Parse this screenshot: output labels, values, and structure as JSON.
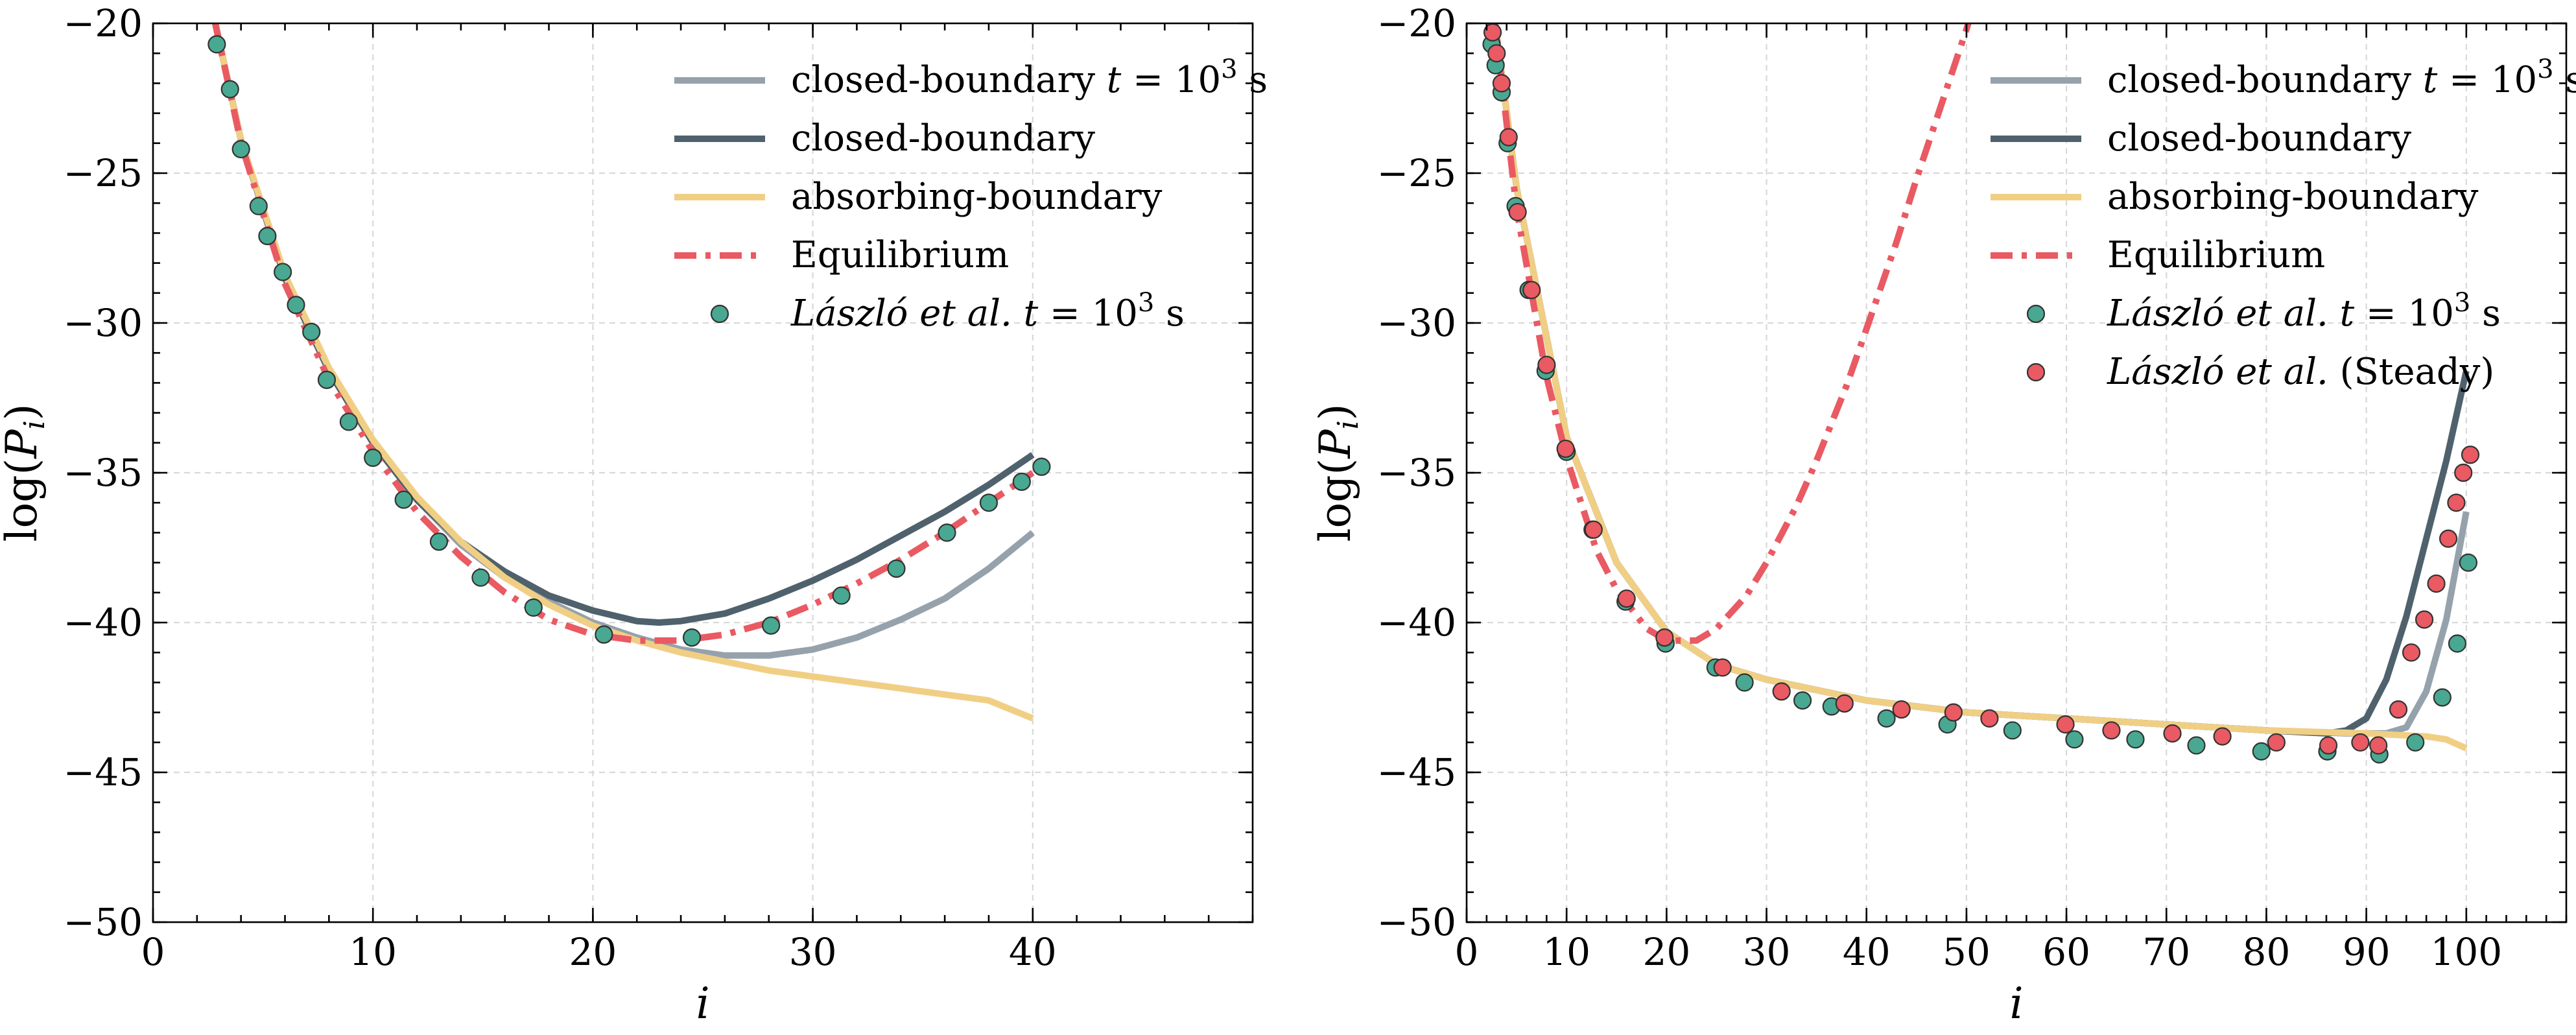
{
  "chart_data": [
    {
      "type": "line",
      "xlabel": "i",
      "ylabel": "log(P_i)",
      "xlim": [
        0,
        50
      ],
      "ylim": [
        -50,
        -20
      ],
      "xticks": [
        0,
        10,
        20,
        30,
        40
      ],
      "xtick_labels": [
        "0",
        "10",
        "20",
        "30",
        "40"
      ],
      "yticks": [
        -50,
        -45,
        -40,
        -35,
        -30,
        -25,
        -20
      ],
      "ytick_labels": [
        "−50",
        "−45",
        "−40",
        "−35",
        "−30",
        "−25",
        "−20"
      ],
      "grid": true,
      "legend_position": "top-right",
      "series": [
        {
          "name": "closed-boundary t = 10^3 s",
          "legend_parts": [
            "closed-boundary ",
            "t",
            " = 10",
            "3",
            " s"
          ],
          "kind": "line",
          "color": "#95a2ac",
          "dash": "solid",
          "x": [
            2.8,
            4,
            6,
            8,
            10,
            12,
            14,
            16,
            18,
            20,
            22,
            24,
            26,
            28,
            30,
            32,
            34,
            36,
            38,
            40
          ],
          "y": [
            -19.9,
            -23.9,
            -28.5,
            -31.6,
            -34.0,
            -35.9,
            -37.4,
            -38.5,
            -39.3,
            -40.0,
            -40.5,
            -40.9,
            -41.1,
            -41.1,
            -40.9,
            -40.5,
            -39.9,
            -39.2,
            -38.2,
            -37.0
          ]
        },
        {
          "name": "closed-boundary",
          "kind": "line",
          "color": "#4f616c",
          "dash": "solid",
          "x": [
            2.8,
            4,
            6,
            8,
            10,
            12,
            14,
            16,
            18,
            20,
            22,
            23,
            24,
            26,
            28,
            30,
            32,
            34,
            36,
            38,
            40
          ],
          "y": [
            -19.9,
            -23.9,
            -28.5,
            -31.6,
            -34.0,
            -35.9,
            -37.3,
            -38.3,
            -39.1,
            -39.6,
            -39.95,
            -40.0,
            -39.95,
            -39.7,
            -39.2,
            -38.6,
            -37.9,
            -37.1,
            -36.3,
            -35.4,
            -34.4
          ]
        },
        {
          "name": "absorbing-boundary",
          "kind": "line",
          "color": "#f0cf85",
          "dash": "solid",
          "x": [
            2.8,
            4,
            6,
            8,
            10,
            12,
            14,
            16,
            18,
            20,
            22,
            24,
            26,
            28,
            30,
            32,
            34,
            36,
            38,
            39,
            40
          ],
          "y": [
            -19.9,
            -23.9,
            -28.4,
            -31.5,
            -33.9,
            -35.8,
            -37.3,
            -38.5,
            -39.4,
            -40.1,
            -40.6,
            -41.0,
            -41.3,
            -41.6,
            -41.8,
            -42.0,
            -42.2,
            -42.4,
            -42.6,
            -42.9,
            -43.2
          ]
        },
        {
          "name": "Equilibrium",
          "kind": "line",
          "color": "#e95a63",
          "dash": "dashdot",
          "x": [
            2.8,
            4,
            6,
            8,
            10,
            12,
            14,
            16,
            18,
            20,
            22,
            24,
            26,
            28,
            30,
            32,
            34,
            36,
            38,
            40
          ],
          "y": [
            -19.9,
            -24.0,
            -28.7,
            -31.9,
            -34.3,
            -36.3,
            -37.8,
            -39.0,
            -39.9,
            -40.4,
            -40.6,
            -40.6,
            -40.4,
            -40.0,
            -39.4,
            -38.7,
            -37.9,
            -37.0,
            -36.0,
            -35.0
          ]
        },
        {
          "name": "László et al. t = 10^3 s",
          "legend_parts": [
            "László et al.",
            " ",
            "t",
            " = 10",
            "3",
            " s"
          ],
          "kind": "scatter",
          "color": "#49a891",
          "x": [
            2.9,
            3.5,
            4.0,
            4.8,
            5.2,
            5.9,
            6.5,
            7.2,
            7.9,
            8.9,
            10.0,
            11.4,
            13.0,
            14.9,
            17.3,
            20.5,
            24.5,
            28.1,
            31.3,
            33.8,
            36.1,
            38.0,
            39.5,
            40.4
          ],
          "y": [
            -20.7,
            -22.2,
            -24.2,
            -26.1,
            -27.1,
            -28.3,
            -29.4,
            -30.3,
            -31.9,
            -33.3,
            -34.5,
            -35.9,
            -37.3,
            -38.5,
            -39.5,
            -40.4,
            -40.5,
            -40.1,
            -39.1,
            -38.2,
            -37.0,
            -36.0,
            -35.3,
            -34.8
          ]
        }
      ]
    },
    {
      "type": "line",
      "xlabel": "i",
      "ylabel": "log(P_i)",
      "xlim": [
        0,
        110
      ],
      "ylim": [
        -50,
        -20
      ],
      "xticks": [
        0,
        10,
        20,
        30,
        40,
        50,
        60,
        70,
        80,
        90,
        100
      ],
      "xtick_labels": [
        "0",
        "10",
        "20",
        "30",
        "40",
        "50",
        "60",
        "70",
        "80",
        "90",
        "100"
      ],
      "yticks": [
        -50,
        -45,
        -40,
        -35,
        -30,
        -25,
        -20
      ],
      "ytick_labels": [
        "−50",
        "−45",
        "−40",
        "−35",
        "−30",
        "−25",
        "−20"
      ],
      "grid": true,
      "legend_position": "top-right",
      "series": [
        {
          "name": "closed-boundary t = 10^3 s",
          "legend_parts": [
            "closed-boundary ",
            "t",
            " = 10",
            "3",
            " s"
          ],
          "kind": "line",
          "color": "#95a2ac",
          "dash": "solid",
          "x": [
            2.8,
            5,
            10,
            15,
            20,
            25,
            30,
            40,
            50,
            60,
            70,
            80,
            88,
            92,
            94,
            96,
            98,
            100
          ],
          "y": [
            -19.9,
            -25.5,
            -33.8,
            -38.0,
            -40.3,
            -41.4,
            -41.9,
            -42.6,
            -43.0,
            -43.2,
            -43.4,
            -43.6,
            -43.7,
            -43.7,
            -43.5,
            -42.3,
            -39.9,
            -36.3
          ]
        },
        {
          "name": "closed-boundary",
          "kind": "line",
          "color": "#4f616c",
          "dash": "solid",
          "x": [
            2.8,
            5,
            10,
            15,
            20,
            25,
            30,
            40,
            50,
            60,
            70,
            80,
            86,
            88,
            90,
            92,
            94,
            96,
            98,
            100
          ],
          "y": [
            -19.9,
            -25.5,
            -33.8,
            -38.0,
            -40.3,
            -41.4,
            -41.9,
            -42.6,
            -43.0,
            -43.2,
            -43.4,
            -43.6,
            -43.7,
            -43.6,
            -43.2,
            -41.9,
            -39.8,
            -37.2,
            -34.6,
            -31.6
          ]
        },
        {
          "name": "absorbing-boundary",
          "kind": "line",
          "color": "#f0cf85",
          "dash": "solid",
          "x": [
            2.8,
            5,
            10,
            15,
            20,
            25,
            30,
            40,
            50,
            60,
            70,
            80,
            90,
            96,
            98,
            100
          ],
          "y": [
            -19.9,
            -25.5,
            -33.8,
            -38.0,
            -40.3,
            -41.4,
            -41.9,
            -42.6,
            -43.0,
            -43.2,
            -43.4,
            -43.6,
            -43.7,
            -43.8,
            -43.9,
            -44.2
          ]
        },
        {
          "name": "Equilibrium",
          "kind": "line",
          "color": "#e95a63",
          "dash": "dashdot",
          "x": [
            2.8,
            5,
            8,
            10,
            13,
            15,
            18,
            20,
            23,
            25,
            28,
            30,
            33,
            35,
            38,
            40,
            43,
            45,
            48,
            50,
            52,
            54.5
          ],
          "y": [
            -19.9,
            -26.2,
            -31.8,
            -34.5,
            -37.6,
            -38.9,
            -40.2,
            -40.6,
            -40.6,
            -40.2,
            -39.1,
            -38.0,
            -36.1,
            -34.6,
            -32.1,
            -30.2,
            -27.3,
            -25.2,
            -22.2,
            -20.2,
            -18.0,
            -15.0
          ]
        },
        {
          "name": "László et al. t = 10^3 s",
          "legend_parts": [
            "László et al.",
            " ",
            "t",
            " = 10",
            "3",
            " s"
          ],
          "kind": "scatter",
          "color": "#49a891",
          "x": [
            2.5,
            2.9,
            3.5,
            4.1,
            4.9,
            6.2,
            7.9,
            10.0,
            12.6,
            15.9,
            19.9,
            24.9,
            27.8,
            33.6,
            36.5,
            42.0,
            48.1,
            54.6,
            60.8,
            66.9,
            73.0,
            79.5,
            86.1,
            91.3,
            94.9,
            97.6,
            99.1,
            100.2
          ],
          "y": [
            -20.7,
            -21.4,
            -22.3,
            -24.0,
            -26.1,
            -28.9,
            -31.6,
            -34.3,
            -36.9,
            -39.3,
            -40.7,
            -41.5,
            -42.0,
            -42.6,
            -42.8,
            -43.2,
            -43.4,
            -43.6,
            -43.9,
            -43.9,
            -44.1,
            -44.3,
            -44.3,
            -44.4,
            -44.0,
            -42.5,
            -40.7,
            -38.0
          ]
        },
        {
          "name": "László et al. (Steady)",
          "legend_parts": [
            "László et al.",
            " (Steady)",
            "",
            "",
            "",
            ""
          ],
          "kind": "scatter",
          "color": "#e95a63",
          "x": [
            2.6,
            3.0,
            3.5,
            4.2,
            5.1,
            6.5,
            8.0,
            9.9,
            12.7,
            16.0,
            19.8,
            25.6,
            31.5,
            37.8,
            43.5,
            48.7,
            52.3,
            59.9,
            64.5,
            70.6,
            75.6,
            81.0,
            86.2,
            89.4,
            91.2,
            93.2,
            94.5,
            95.8,
            97.0,
            98.2,
            99.0,
            99.7,
            100.4
          ],
          "y": [
            -20.3,
            -21.0,
            -22.0,
            -23.8,
            -26.3,
            -28.9,
            -31.4,
            -34.2,
            -36.9,
            -39.2,
            -40.5,
            -41.5,
            -42.3,
            -42.7,
            -42.9,
            -43.0,
            -43.2,
            -43.4,
            -43.6,
            -43.7,
            -43.8,
            -44.0,
            -44.1,
            -44.0,
            -44.1,
            -42.9,
            -41.0,
            -39.9,
            -38.7,
            -37.2,
            -36.0,
            -35.0,
            -34.4
          ]
        }
      ]
    }
  ]
}
